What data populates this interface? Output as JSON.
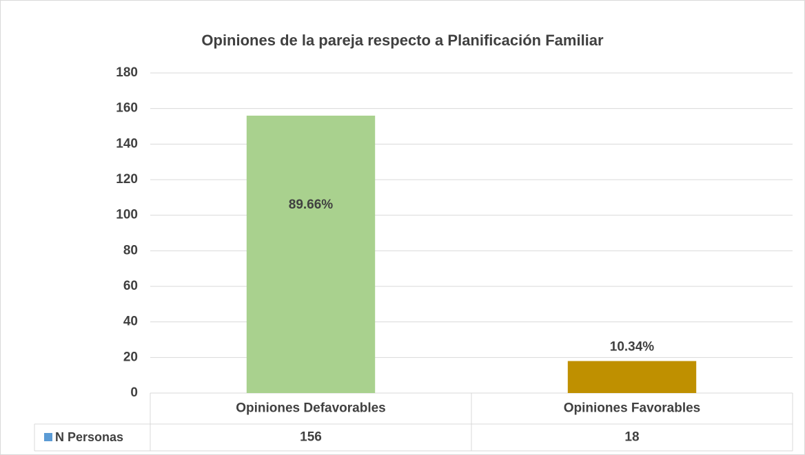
{
  "chart_data": {
    "type": "bar",
    "title": "Opiniones de la pareja respecto a Planificación Familiar",
    "categories": [
      "Opiniones Defavorables",
      "Opiniones Favorables"
    ],
    "series": [
      {
        "name": "N Personas",
        "color": "#5b9bd5",
        "values": [
          156,
          18
        ]
      }
    ],
    "bar_colors": [
      "#a9d18e",
      "#bf9000"
    ],
    "percentages": [
      "89.66%",
      "10.34%"
    ],
    "ylim": [
      0,
      180
    ],
    "yticks": [
      0,
      20,
      40,
      60,
      80,
      100,
      120,
      140,
      160,
      180
    ],
    "grid": true
  }
}
